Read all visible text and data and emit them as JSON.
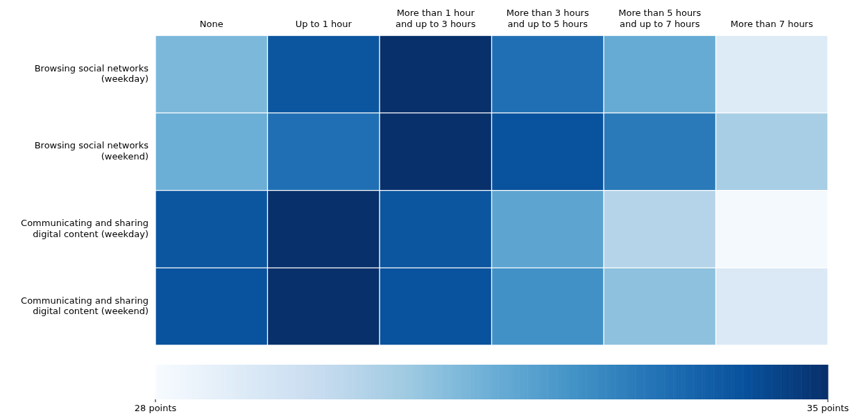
{
  "chart_data": {
    "type": "heatmap",
    "categories": [
      "None",
      "Up to 1 hour",
      "More than 1 hour and up to 3 hours",
      "More than 3 hours and up to 5 hours",
      "More than 5 hours and up to 7 hours",
      "More than 7 hours"
    ],
    "y_categories": [
      "Browsing social networks (weekday)",
      "Browsing social networks (weekend)",
      "Communicating and sharing digital content (weekday)",
      "Communicating and sharing digital content (weekend)"
    ],
    "cells": [
      [
        31.2,
        34.0,
        35.0,
        33.3,
        31.6,
        28.9
      ],
      [
        31.5,
        33.3,
        35.0,
        34.1,
        33.0,
        30.4
      ],
      [
        34.0,
        35.0,
        34.0,
        31.8,
        30.1,
        28.1
      ],
      [
        34.1,
        35.0,
        34.1,
        32.4,
        30.9,
        29.0
      ]
    ],
    "clim": [
      28,
      35
    ],
    "cticks": [
      {
        "value": 28,
        "label": "28 points"
      },
      {
        "value": 35,
        "label": "35 points"
      }
    ]
  }
}
